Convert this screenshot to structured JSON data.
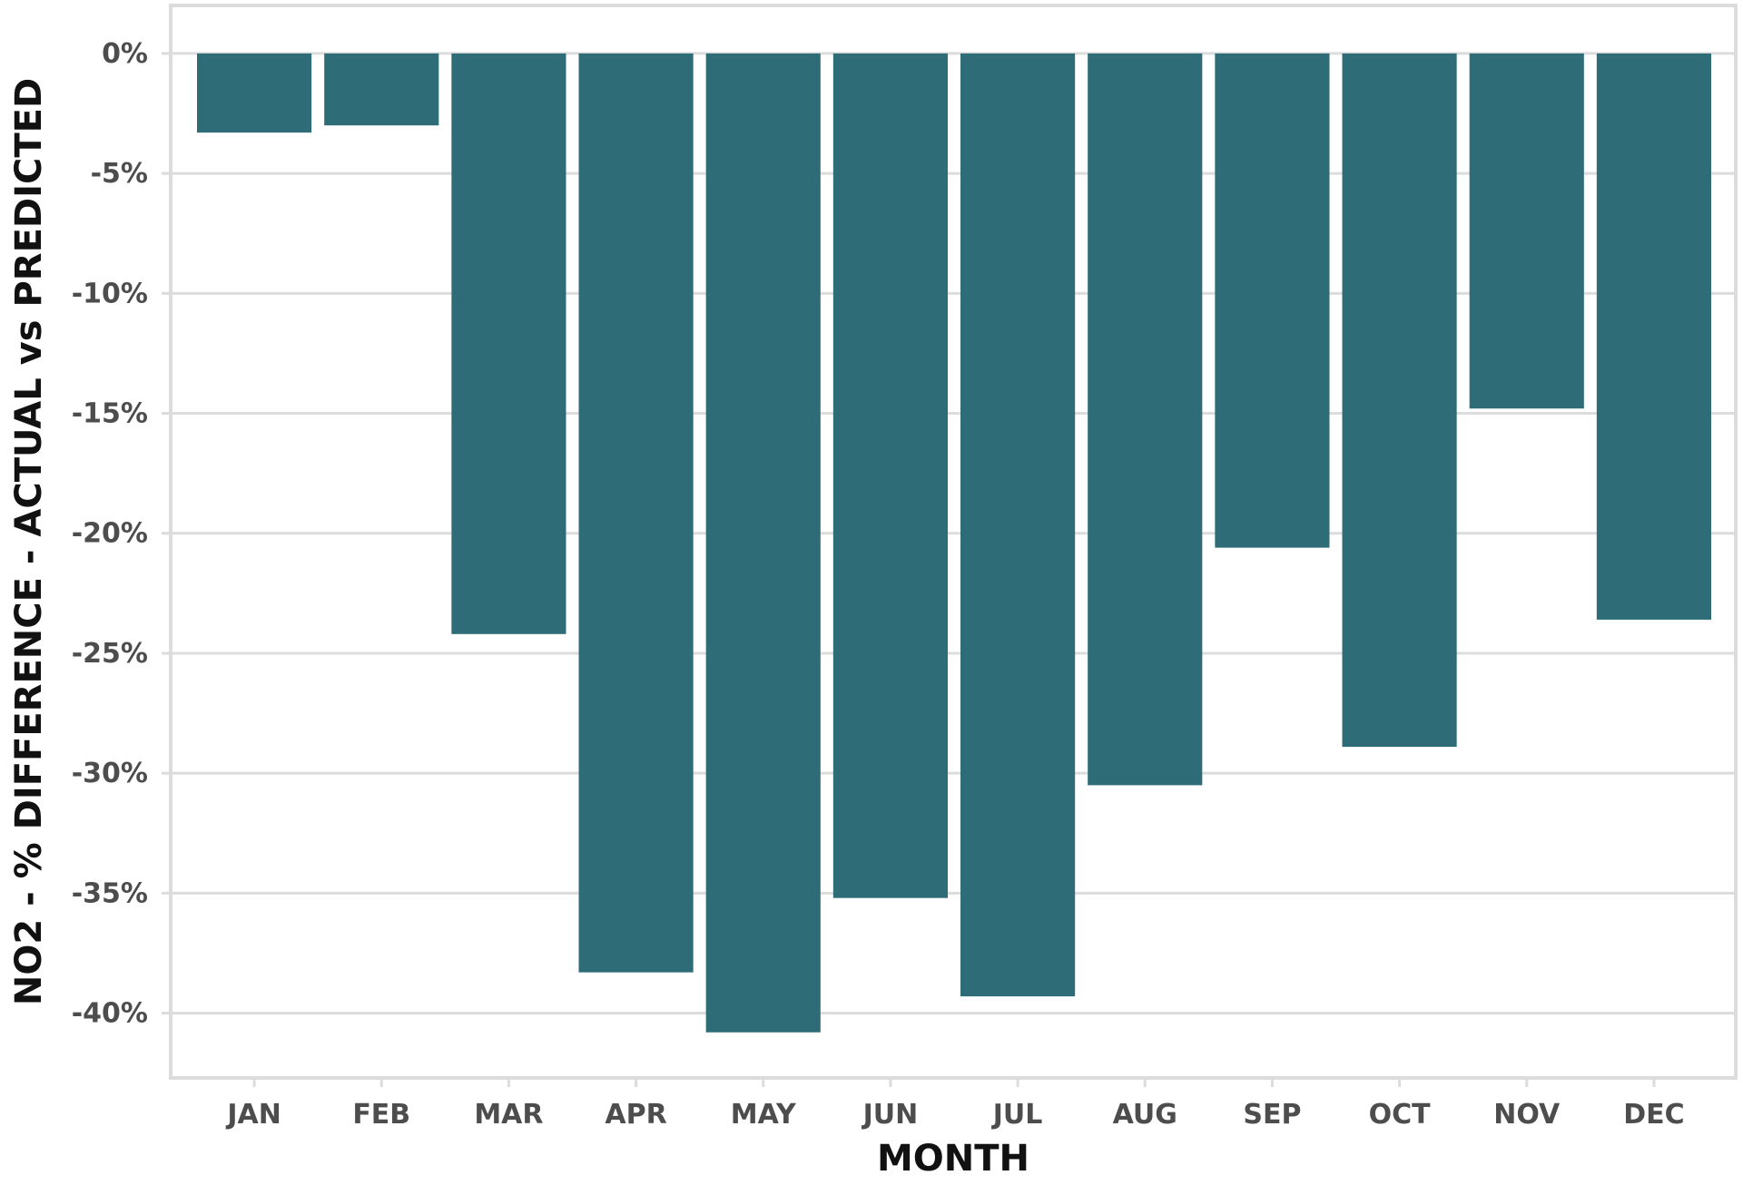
{
  "chart_data": {
    "type": "bar",
    "categories": [
      "JAN",
      "FEB",
      "MAR",
      "APR",
      "MAY",
      "JUN",
      "JUL",
      "AUG",
      "SEP",
      "OCT",
      "NOV",
      "DEC"
    ],
    "values": [
      -3.3,
      -3.0,
      -24.2,
      -38.3,
      -40.8,
      -35.2,
      -39.3,
      -30.5,
      -20.6,
      -28.9,
      -14.8,
      -23.6
    ],
    "xlabel": "MONTH",
    "ylabel": "NO2 - % DIFFERENCE - ACTUAL vs PREDICTED",
    "yticks": [
      0,
      -5,
      -10,
      -15,
      -20,
      -25,
      -30,
      -35,
      -40
    ],
    "ytick_labels": [
      "0%",
      "-5%",
      "-10%",
      "-15%",
      "-20%",
      "-25%",
      "-30%",
      "-35%",
      "-40%"
    ],
    "ylim": [
      -42.7,
      2.0
    ],
    "grid": true,
    "bar_color": "#2e6d78",
    "grid_color": "#dcdcdc",
    "frame_color": "#dcdcdc",
    "tick_label_color": "#4d4d4d",
    "axis_title_color": "#111111"
  }
}
